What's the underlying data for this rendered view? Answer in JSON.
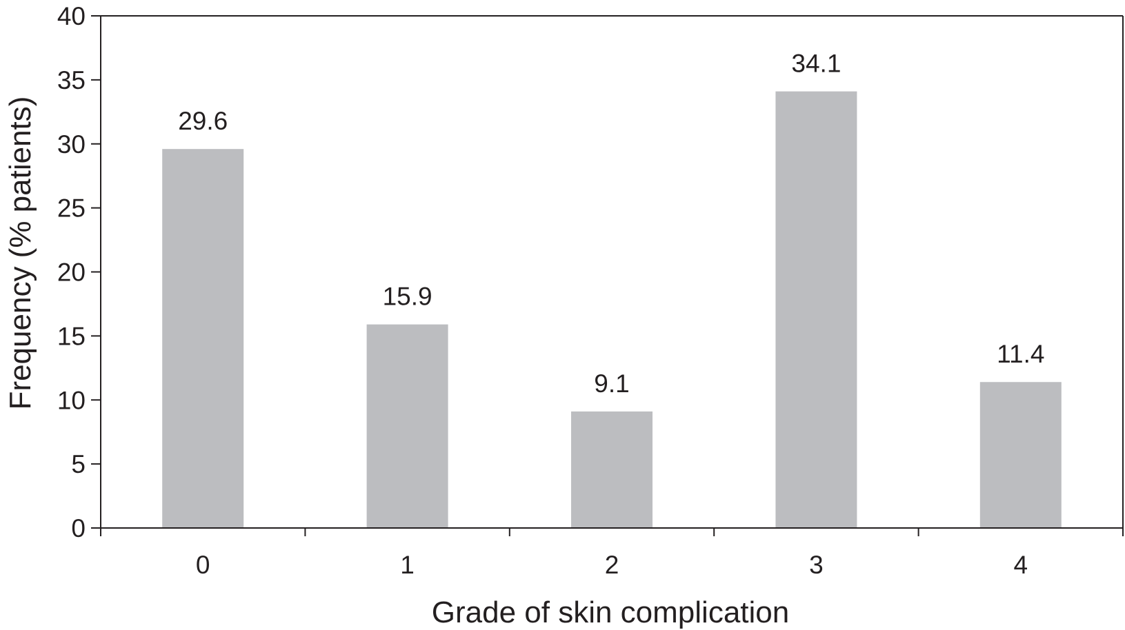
{
  "chart_data": {
    "type": "bar",
    "categories": [
      "0",
      "1",
      "2",
      "3",
      "4"
    ],
    "values": [
      29.6,
      15.9,
      9.1,
      34.1,
      11.4
    ],
    "data_labels": [
      "29.6",
      "15.9",
      "9.1",
      "34.1",
      "11.4"
    ],
    "title": "",
    "xlabel": "Grade of skin complication",
    "ylabel": "Frequency (% patients)",
    "ylim": [
      0,
      40
    ],
    "yticks": [
      "0",
      "5",
      "10",
      "15",
      "20",
      "25",
      "30",
      "35",
      "40"
    ],
    "grid": false,
    "legend": "none",
    "colors": {
      "bar": "#bcbdc0",
      "axis": "#231f20",
      "text": "#231f20"
    }
  }
}
